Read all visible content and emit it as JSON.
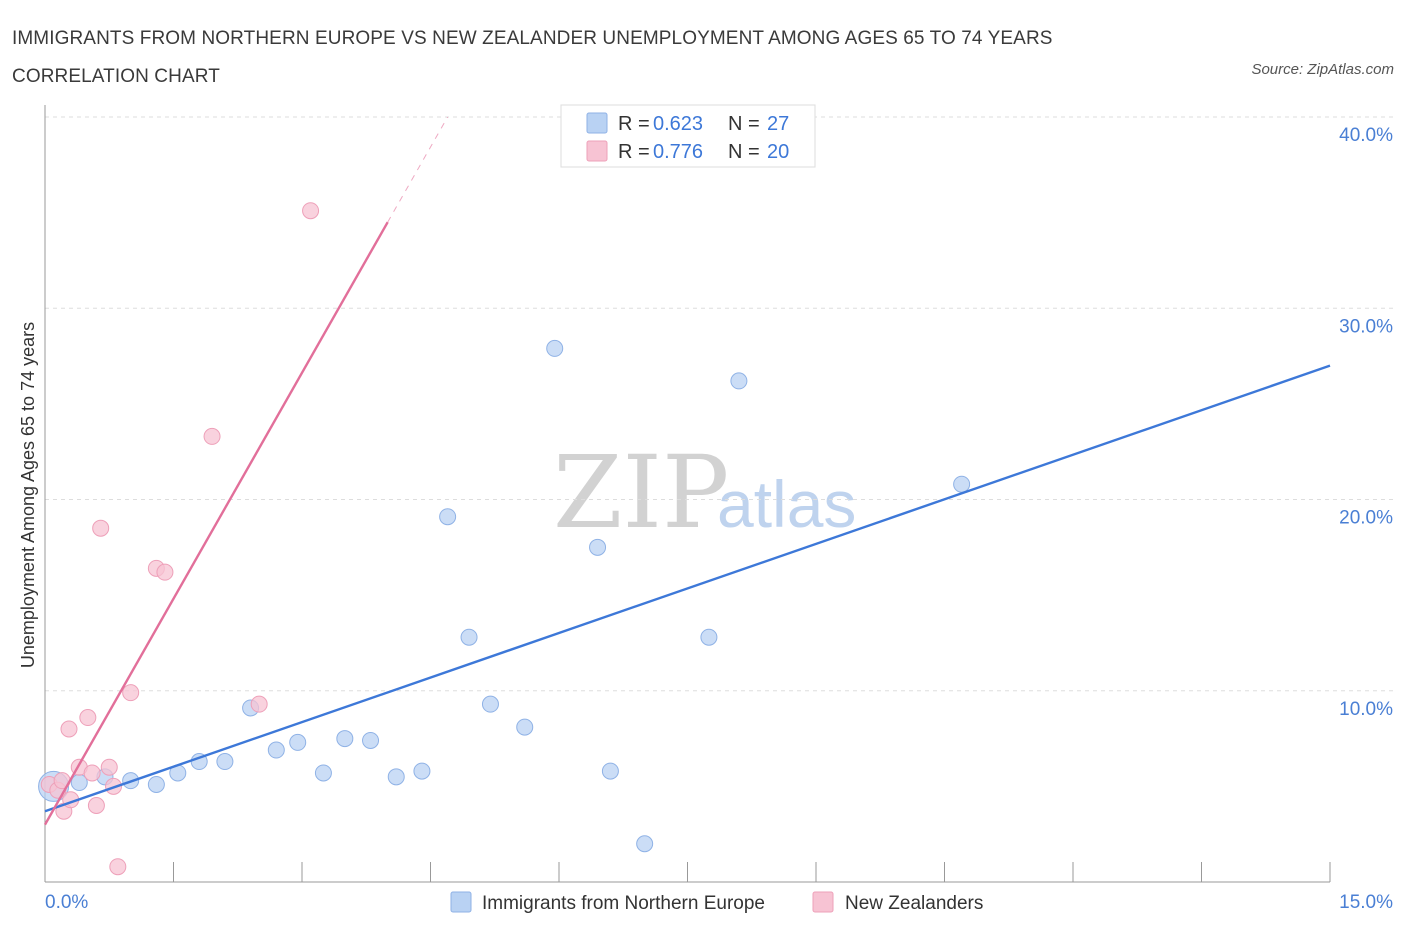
{
  "title": "IMMIGRANTS FROM NORTHERN EUROPE VS NEW ZEALANDER UNEMPLOYMENT AMONG AGES 65 TO 74 YEARS CORRELATION CHART",
  "source": "Source: ZipAtlas.com",
  "watermark": {
    "zip": "ZIP",
    "atlas": "atlas"
  },
  "colors": {
    "blue": "#3d78d8",
    "pink": "#e26f9a",
    "blue_fill": "#b9d2f3",
    "pink_fill": "#f7c3d3",
    "grid": "#dddddd",
    "axis": "#999999"
  },
  "legend": {
    "r_label": "R =",
    "n_label": "N =",
    "series1": {
      "r": "0.623",
      "n": "27"
    },
    "series2": {
      "r": "0.776",
      "n": "20"
    }
  },
  "chart_data": {
    "type": "scatter",
    "xlabel": "",
    "ylabel": "Unemployment Among Ages 65 to 74 years",
    "xlim": [
      0,
      15
    ],
    "ylim": [
      0,
      40
    ],
    "x_tick_labels": [
      "0.0%",
      "15.0%"
    ],
    "y_tick_labels": [
      "10.0%",
      "20.0%",
      "30.0%",
      "40.0%"
    ],
    "y_ticks": [
      10,
      20,
      30,
      40
    ],
    "x_ticks": [
      0,
      1.5,
      3,
      4.5,
      6,
      7.5,
      9,
      10.5,
      12,
      13.5,
      15
    ],
    "grid": true,
    "series": [
      {
        "name": "Immigrants from Northern Europe",
        "color": "blue",
        "R": 0.623,
        "N": 27,
        "trend": {
          "x0": 0.0,
          "y0": 3.7,
          "x1": 15.0,
          "y1": 27.0
        },
        "points": [
          {
            "x": 0.1,
            "y": 5.0,
            "size": "large"
          },
          {
            "x": 0.4,
            "y": 5.2
          },
          {
            "x": 0.7,
            "y": 5.5
          },
          {
            "x": 1.0,
            "y": 5.3
          },
          {
            "x": 1.3,
            "y": 5.1
          },
          {
            "x": 1.55,
            "y": 5.7
          },
          {
            "x": 1.8,
            "y": 6.3
          },
          {
            "x": 2.1,
            "y": 6.3
          },
          {
            "x": 2.4,
            "y": 9.1
          },
          {
            "x": 2.7,
            "y": 6.9
          },
          {
            "x": 2.95,
            "y": 7.3
          },
          {
            "x": 3.25,
            "y": 5.7
          },
          {
            "x": 3.5,
            "y": 7.5
          },
          {
            "x": 3.8,
            "y": 7.4
          },
          {
            "x": 4.1,
            "y": 5.5
          },
          {
            "x": 4.4,
            "y": 5.8
          },
          {
            "x": 4.7,
            "y": 19.1
          },
          {
            "x": 4.95,
            "y": 12.8
          },
          {
            "x": 5.2,
            "y": 9.3
          },
          {
            "x": 5.6,
            "y": 8.1
          },
          {
            "x": 5.95,
            "y": 27.9
          },
          {
            "x": 6.45,
            "y": 17.5
          },
          {
            "x": 6.6,
            "y": 5.8
          },
          {
            "x": 7.0,
            "y": 2.0
          },
          {
            "x": 7.75,
            "y": 12.8
          },
          {
            "x": 8.1,
            "y": 26.2
          },
          {
            "x": 10.7,
            "y": 20.8
          }
        ]
      },
      {
        "name": "New Zealanders",
        "color": "pink",
        "R": 0.776,
        "N": 20,
        "trend": {
          "x0": 0.0,
          "y0": 3.0,
          "x1": 4.0,
          "y1": 34.5
        },
        "trend_dashed": {
          "x0": 4.0,
          "y0": 34.5,
          "x1": 4.7,
          "y1": 40.0
        },
        "points": [
          {
            "x": 0.05,
            "y": 5.1
          },
          {
            "x": 0.15,
            "y": 4.8
          },
          {
            "x": 0.2,
            "y": 5.3
          },
          {
            "x": 0.22,
            "y": 3.7
          },
          {
            "x": 0.3,
            "y": 4.3
          },
          {
            "x": 0.28,
            "y": 8.0
          },
          {
            "x": 0.4,
            "y": 6.0
          },
          {
            "x": 0.5,
            "y": 8.6
          },
          {
            "x": 0.55,
            "y": 5.7
          },
          {
            "x": 0.6,
            "y": 4.0
          },
          {
            "x": 0.65,
            "y": 18.5
          },
          {
            "x": 0.75,
            "y": 6.0
          },
          {
            "x": 0.8,
            "y": 5.0
          },
          {
            "x": 0.85,
            "y": 0.8
          },
          {
            "x": 1.0,
            "y": 9.9
          },
          {
            "x": 1.3,
            "y": 16.4
          },
          {
            "x": 1.4,
            "y": 16.2
          },
          {
            "x": 1.95,
            "y": 23.3
          },
          {
            "x": 2.5,
            "y": 9.3
          },
          {
            "x": 3.1,
            "y": 35.1
          }
        ]
      }
    ]
  }
}
